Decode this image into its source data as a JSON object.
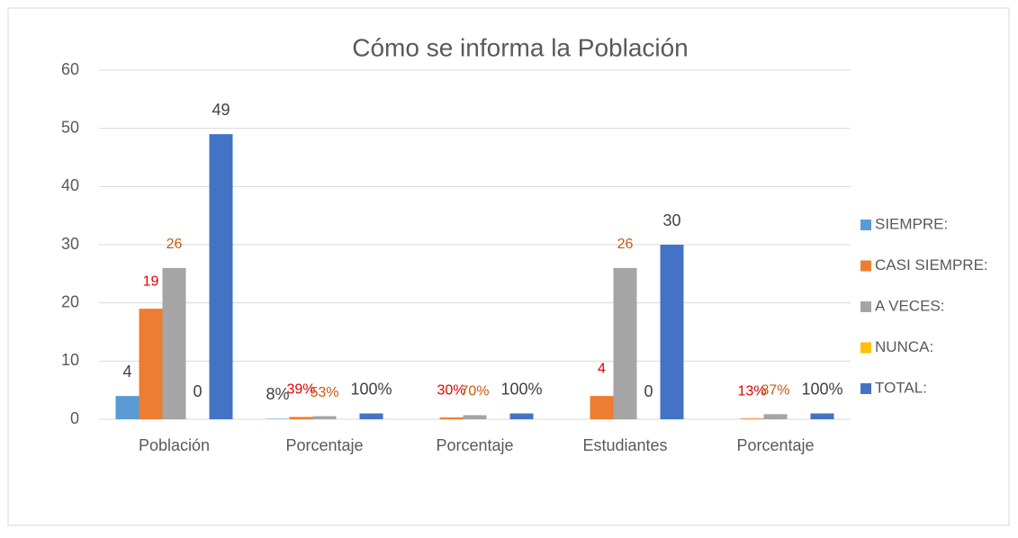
{
  "chart_data": {
    "type": "bar",
    "title": "Cómo se informa la Población",
    "categories": [
      "Población",
      "Porcentaje",
      "Porcentaje",
      "Estudiantes",
      "Porcentaje"
    ],
    "series": [
      {
        "name": "SIEMPRE:",
        "color": "#5b9bd5",
        "label_color": "#404040",
        "values": [
          4,
          0.08,
          null,
          null,
          null
        ],
        "value_labels": [
          "4",
          "8%",
          null,
          null,
          null
        ]
      },
      {
        "name": "CASI SIEMPRE:",
        "color": "#ed7d31",
        "label_color": "#e00000",
        "values": [
          19,
          0.39,
          0.3,
          4,
          0.13
        ],
        "value_labels": [
          "19",
          "39%",
          "30%",
          "4",
          "13%"
        ]
      },
      {
        "name": "A VECES:",
        "color": "#a5a5a5",
        "label_color": "#c55a11",
        "values": [
          26,
          0.53,
          0.7,
          26,
          0.87
        ],
        "value_labels": [
          "26",
          "53%",
          "70%",
          "26",
          "87%"
        ]
      },
      {
        "name": "NUNCA:",
        "color": "#ffc000",
        "label_color": "#404040",
        "values": [
          0,
          null,
          null,
          0,
          null
        ],
        "value_labels": [
          "0",
          null,
          null,
          "0",
          null
        ]
      },
      {
        "name": "TOTAL:",
        "color": "#4472c4",
        "label_color": "#404040",
        "values": [
          49,
          1,
          1,
          30,
          1
        ],
        "value_labels": [
          "49",
          "100%",
          "100%",
          "30",
          "100%"
        ]
      }
    ],
    "ylim": [
      0,
      60
    ],
    "yticks": [
      0,
      10,
      20,
      30,
      40,
      50,
      60
    ],
    "grid": true,
    "legend": "right"
  }
}
